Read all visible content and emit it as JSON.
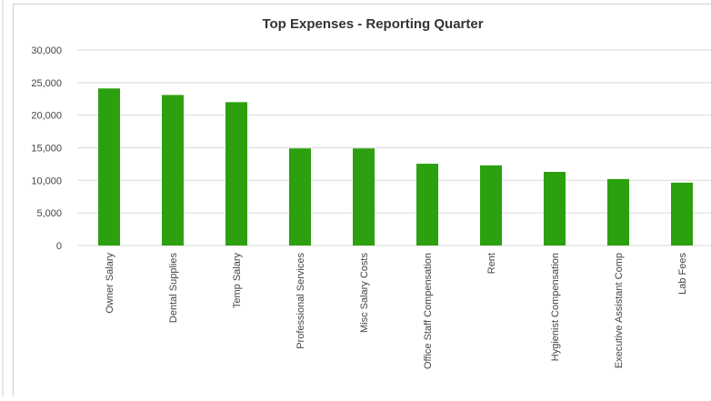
{
  "chart_data": {
    "type": "bar",
    "title": "Top Expenses - Reporting Quarter",
    "categories": [
      "Owner Salary",
      "Dental Supplies",
      "Temp Salary",
      "Professional Services",
      "Misc Salary Costs",
      "Office Staff Compensation",
      "Rent",
      "Hygienist Compensation",
      "Executive Assistant Comp",
      "Lab Fees"
    ],
    "values": [
      24100,
      23100,
      22000,
      14900,
      14900,
      12550,
      12300,
      11300,
      10200,
      9650
    ],
    "color": "#2ca00f",
    "ylim": [
      0,
      30000
    ],
    "yticks": [
      0,
      {
        "value": 5000,
        "label": "5,000"
      },
      {
        "value": 10000,
        "label": "10,000"
      },
      {
        "value": 15000,
        "label": "15,000"
      },
      {
        "value": 20000,
        "label": "20,000"
      },
      {
        "value": 25000,
        "label": "25,000"
      },
      {
        "value": 30000,
        "label": "30,000"
      }
    ],
    "grid": true
  }
}
